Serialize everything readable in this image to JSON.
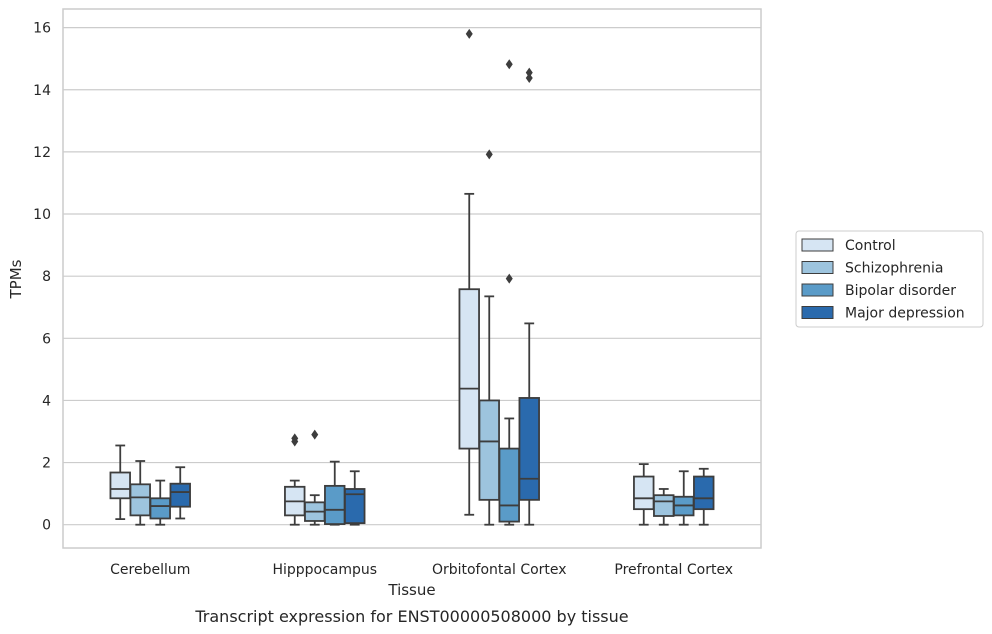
{
  "chart_data": {
    "type": "box",
    "title": "",
    "caption": "Transcript expression for ENST00000508000 by tissue",
    "xlabel": "Tissue",
    "ylabel": "TPMs",
    "ylim": [
      -0.75,
      16.6
    ],
    "yticks": [
      0,
      2,
      4,
      6,
      8,
      10,
      12,
      14,
      16
    ],
    "grid": "horizontal",
    "legend_position": "right",
    "categories": [
      "Cerebellum",
      "Hipppocampus",
      "Orbitofontal Cortex",
      "Prefrontal Cortex"
    ],
    "series": [
      {
        "name": "Control",
        "color": "#d6e5f3",
        "boxes": [
          {
            "whislo": 0.18,
            "q1": 0.85,
            "med": 1.15,
            "q3": 1.68,
            "whishi": 2.55,
            "fliers": []
          },
          {
            "whislo": 0.0,
            "q1": 0.3,
            "med": 0.75,
            "q3": 1.22,
            "whishi": 1.42,
            "fliers": [
              2.68,
              2.78
            ]
          },
          {
            "whislo": 0.32,
            "q1": 2.45,
            "med": 4.38,
            "q3": 7.58,
            "whishi": 10.65,
            "fliers": [
              15.8
            ]
          },
          {
            "whislo": 0.0,
            "q1": 0.5,
            "med": 0.85,
            "q3": 1.55,
            "whishi": 1.95,
            "fliers": []
          }
        ]
      },
      {
        "name": "Schizophrenia",
        "color": "#9dc4de",
        "boxes": [
          {
            "whislo": 0.0,
            "q1": 0.3,
            "med": 0.88,
            "q3": 1.3,
            "whishi": 2.05,
            "fliers": []
          },
          {
            "whislo": 0.0,
            "q1": 0.12,
            "med": 0.42,
            "q3": 0.72,
            "whishi": 0.95,
            "fliers": [
              2.9
            ]
          },
          {
            "whislo": 0.0,
            "q1": 0.8,
            "med": 2.68,
            "q3": 4.0,
            "whishi": 7.35,
            "fliers": [
              11.92
            ]
          },
          {
            "whislo": 0.0,
            "q1": 0.28,
            "med": 0.75,
            "q3": 0.95,
            "whishi": 1.15,
            "fliers": []
          }
        ]
      },
      {
        "name": "Bipolar disorder",
        "color": "#5a9bc8",
        "boxes": [
          {
            "whislo": 0.0,
            "q1": 0.2,
            "med": 0.6,
            "q3": 0.85,
            "whishi": 1.42,
            "fliers": []
          },
          {
            "whislo": 0.0,
            "q1": 0.02,
            "med": 0.48,
            "q3": 1.25,
            "whishi": 2.03,
            "fliers": []
          },
          {
            "whislo": 0.0,
            "q1": 0.1,
            "med": 0.62,
            "q3": 2.45,
            "whishi": 3.42,
            "fliers": [
              7.92,
              14.82
            ]
          },
          {
            "whislo": 0.0,
            "q1": 0.3,
            "med": 0.62,
            "q3": 0.9,
            "whishi": 1.72,
            "fliers": []
          }
        ]
      },
      {
        "name": "Major depression",
        "color": "#2a6aad",
        "boxes": [
          {
            "whislo": 0.2,
            "q1": 0.58,
            "med": 1.05,
            "q3": 1.32,
            "whishi": 1.85,
            "fliers": []
          },
          {
            "whislo": 0.0,
            "q1": 0.05,
            "med": 0.98,
            "q3": 1.15,
            "whishi": 1.72,
            "fliers": []
          },
          {
            "whislo": 0.0,
            "q1": 0.8,
            "med": 1.48,
            "q3": 4.08,
            "whishi": 6.48,
            "fliers": [
              14.38,
              14.55
            ]
          },
          {
            "whislo": 0.0,
            "q1": 0.5,
            "med": 0.85,
            "q3": 1.55,
            "whishi": 1.8,
            "fliers": []
          }
        ]
      }
    ]
  }
}
